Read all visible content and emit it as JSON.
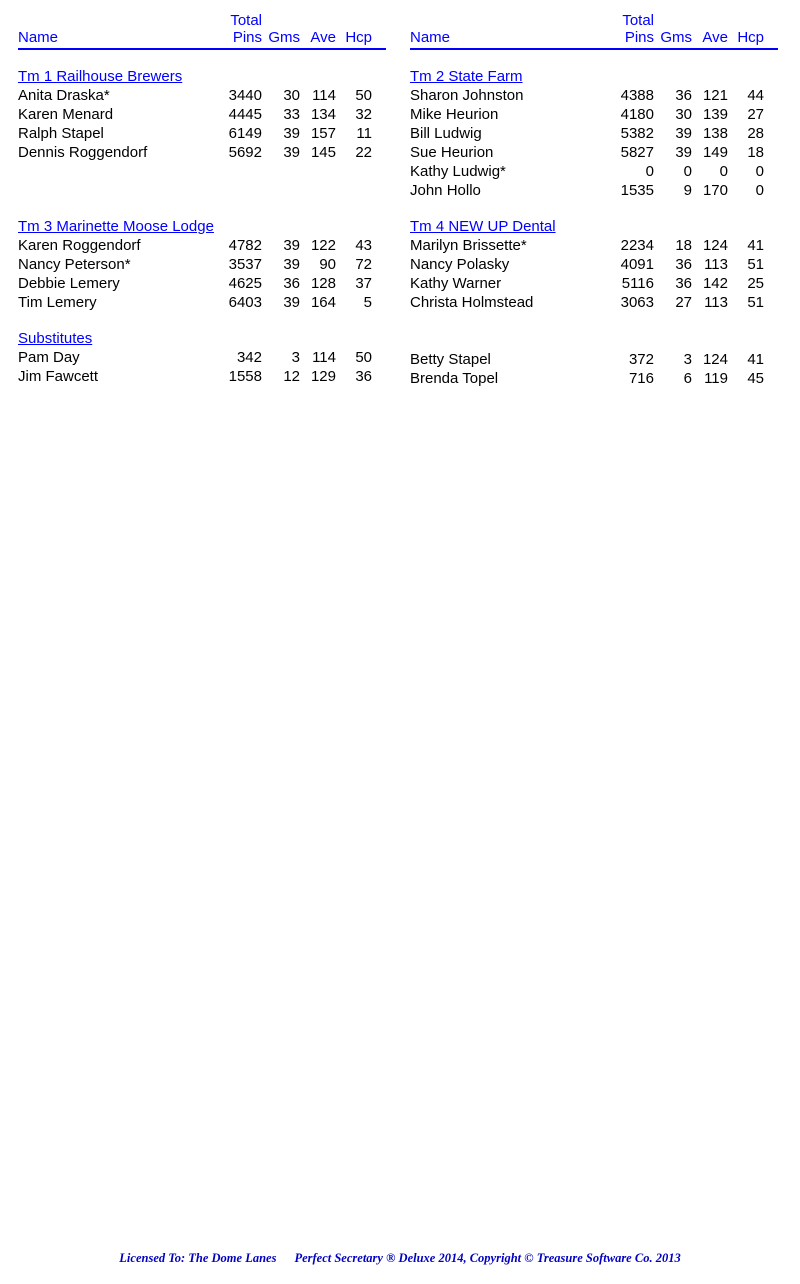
{
  "headers": {
    "name": "Name",
    "pins_top": "Total",
    "pins": "Pins",
    "gms": "Gms",
    "ave": "Ave",
    "hcp": "Hcp"
  },
  "left": {
    "sections": [
      {
        "title": "Tm 1 Railhouse Brewers",
        "rows": [
          {
            "name": "Anita Draska*",
            "pins": "3440",
            "gms": "30",
            "ave": "114",
            "hcp": "50"
          },
          {
            "name": "Karen Menard",
            "pins": "4445",
            "gms": "33",
            "ave": "134",
            "hcp": "32"
          },
          {
            "name": "Ralph Stapel",
            "pins": "6149",
            "gms": "39",
            "ave": "157",
            "hcp": "11"
          },
          {
            "name": "Dennis Roggendorf",
            "pins": "5692",
            "gms": "39",
            "ave": "145",
            "hcp": "22"
          }
        ],
        "pad_after": 2
      },
      {
        "title": "Tm 3 Marinette Moose Lodge",
        "rows": [
          {
            "name": "Karen Roggendorf",
            "pins": "4782",
            "gms": "39",
            "ave": "122",
            "hcp": "43"
          },
          {
            "name": "Nancy Peterson*",
            "pins": "3537",
            "gms": "39",
            "ave": "90",
            "hcp": "72"
          },
          {
            "name": "Debbie Lemery",
            "pins": "4625",
            "gms": "36",
            "ave": "128",
            "hcp": "37"
          },
          {
            "name": "Tim Lemery",
            "pins": "6403",
            "gms": "39",
            "ave": "164",
            "hcp": "5"
          }
        ],
        "pad_after": 0
      },
      {
        "title": "Substitutes",
        "rows": [
          {
            "name": "Pam Day",
            "pins": "342",
            "gms": "3",
            "ave": "114",
            "hcp": "50"
          },
          {
            "name": "Jim Fawcett",
            "pins": "1558",
            "gms": "12",
            "ave": "129",
            "hcp": "36"
          }
        ],
        "pad_after": 0
      }
    ]
  },
  "right": {
    "sections": [
      {
        "title": "Tm 2 State Farm",
        "rows": [
          {
            "name": "Sharon Johnston",
            "pins": "4388",
            "gms": "36",
            "ave": "121",
            "hcp": "44"
          },
          {
            "name": "Mike Heurion",
            "pins": "4180",
            "gms": "30",
            "ave": "139",
            "hcp": "27"
          },
          {
            "name": "Bill Ludwig",
            "pins": "5382",
            "gms": "39",
            "ave": "138",
            "hcp": "28"
          },
          {
            "name": "Sue Heurion",
            "pins": "5827",
            "gms": "39",
            "ave": "149",
            "hcp": "18"
          },
          {
            "name": "Kathy Ludwig*",
            "pins": "0",
            "gms": "0",
            "ave": "0",
            "hcp": "0"
          },
          {
            "name": "John Hollo",
            "pins": "1535",
            "gms": "9",
            "ave": "170",
            "hcp": "0"
          }
        ],
        "pad_after": 0
      },
      {
        "title": "Tm 4 NEW UP Dental",
        "rows": [
          {
            "name": "Marilyn Brissette*",
            "pins": "2234",
            "gms": "18",
            "ave": "124",
            "hcp": "41"
          },
          {
            "name": "Nancy Polasky",
            "pins": "4091",
            "gms": "36",
            "ave": "113",
            "hcp": "51"
          },
          {
            "name": "Kathy Warner",
            "pins": "5116",
            "gms": "36",
            "ave": "142",
            "hcp": "25"
          },
          {
            "name": "Christa Holmstead",
            "pins": "3063",
            "gms": "27",
            "ave": "113",
            "hcp": "51"
          }
        ],
        "pad_after": 0
      },
      {
        "title": "",
        "rows": [
          {
            "name": "Betty Stapel",
            "pins": "372",
            "gms": "3",
            "ave": "124",
            "hcp": "41"
          },
          {
            "name": "Brenda Topel",
            "pins": "716",
            "gms": "6",
            "ave": "119",
            "hcp": "45"
          }
        ],
        "pad_after": 0
      }
    ]
  },
  "footer": {
    "left": "Licensed To: The Dome Lanes",
    "right": "Perfect Secretary ® Deluxe  2014, Copyright © Treasure Software Co. 2013"
  },
  "colors": {
    "blue": "#0000ff",
    "text": "#000000",
    "footer": "#0000c0",
    "background": "#ffffff"
  }
}
